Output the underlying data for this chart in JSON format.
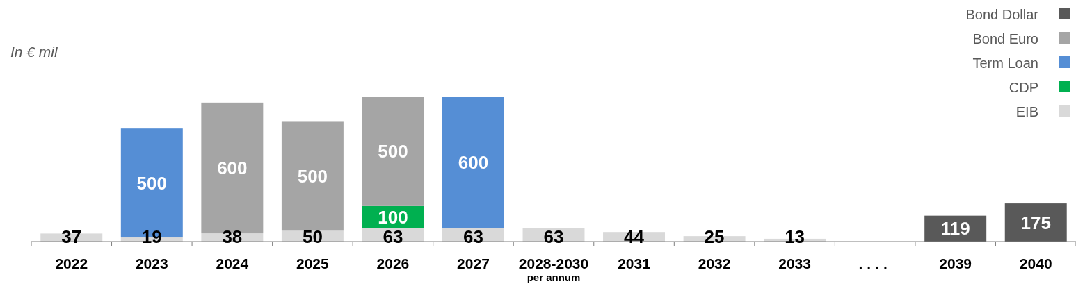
{
  "chart_data": {
    "type": "bar",
    "ylabel": "In € mil",
    "stacked": true,
    "data_labels": true,
    "legend": "top right",
    "tick_labels": "x",
    "categories": [
      "2022",
      "2023",
      "2024",
      "2025",
      "2026",
      "2027",
      "2028-2030 per annum",
      "2031",
      "2032",
      "2033",
      "....",
      "2039",
      "2040"
    ],
    "series": [
      {
        "name": "EIB",
        "color": "#d9d9d9",
        "values": [
          37,
          19,
          38,
          50,
          63,
          63,
          63,
          44,
          25,
          13,
          null,
          null,
          null
        ]
      },
      {
        "name": "CDP",
        "color": "#00b050",
        "values": [
          null,
          null,
          null,
          null,
          100,
          null,
          null,
          null,
          null,
          null,
          null,
          null,
          null
        ]
      },
      {
        "name": "Term Loan",
        "color": "#558ed5",
        "values": [
          null,
          500,
          null,
          null,
          null,
          600,
          null,
          null,
          null,
          null,
          null,
          null,
          null
        ]
      },
      {
        "name": "Bond Euro",
        "color": "#a5a5a5",
        "values": [
          null,
          null,
          600,
          500,
          500,
          null,
          null,
          null,
          null,
          null,
          null,
          null,
          null
        ]
      },
      {
        "name": "Bond Dollar",
        "color": "#595959",
        "values": [
          null,
          null,
          null,
          null,
          null,
          null,
          null,
          null,
          null,
          null,
          null,
          119,
          175
        ]
      }
    ]
  }
}
